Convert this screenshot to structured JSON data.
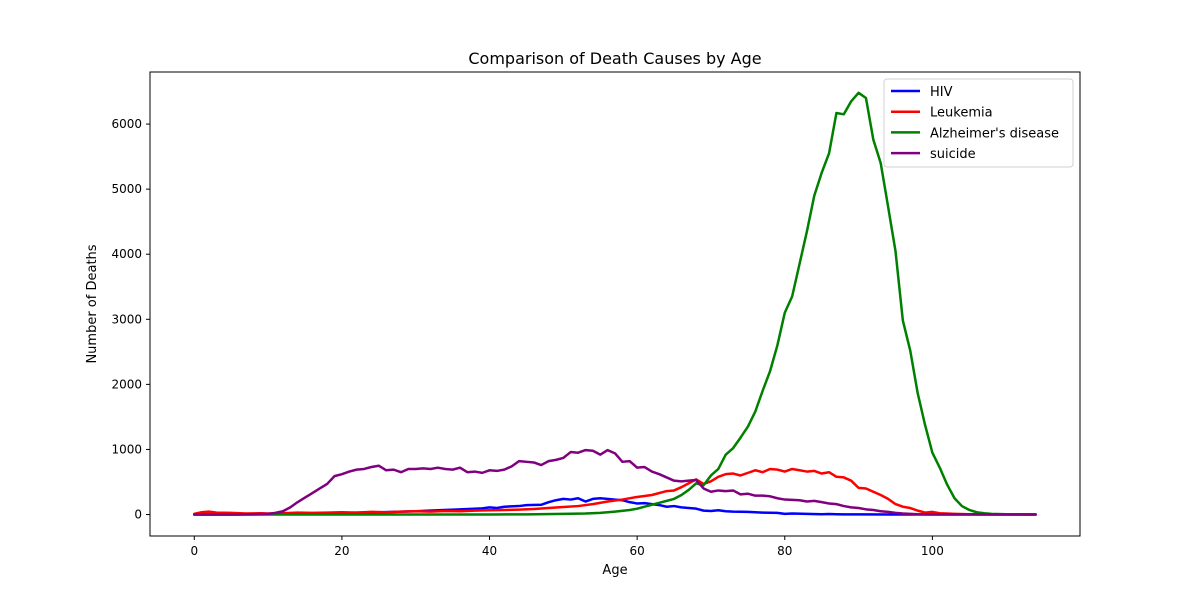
{
  "chart_data": {
    "type": "line",
    "title": "Comparison of Death Causes by Age",
    "xlabel": "Age",
    "ylabel": "Number of Deaths",
    "xlim": [
      -6,
      120
    ],
    "ylim": [
      -330,
      6800
    ],
    "xticks": [
      0,
      20,
      40,
      60,
      80,
      100
    ],
    "yticks": [
      0,
      1000,
      2000,
      3000,
      4000,
      5000,
      6000
    ],
    "grid": false,
    "legend_position": "top-right",
    "series": [
      {
        "name": "HIV",
        "color": "#0000ff",
        "points": [
          [
            0,
            0
          ],
          [
            5,
            0
          ],
          [
            10,
            5
          ],
          [
            15,
            15
          ],
          [
            20,
            25
          ],
          [
            25,
            35
          ],
          [
            30,
            50
          ],
          [
            33,
            65
          ],
          [
            36,
            80
          ],
          [
            39,
            95
          ],
          [
            40,
            110
          ],
          [
            41,
            100
          ],
          [
            42,
            120
          ],
          [
            44,
            130
          ],
          [
            45,
            145
          ],
          [
            47,
            150
          ],
          [
            48,
            190
          ],
          [
            49,
            220
          ],
          [
            50,
            240
          ],
          [
            51,
            230
          ],
          [
            52,
            250
          ],
          [
            53,
            200
          ],
          [
            54,
            240
          ],
          [
            55,
            250
          ],
          [
            57,
            230
          ],
          [
            58,
            220
          ],
          [
            59,
            190
          ],
          [
            60,
            170
          ],
          [
            61,
            175
          ],
          [
            62,
            160
          ],
          [
            63,
            145
          ],
          [
            64,
            120
          ],
          [
            65,
            130
          ],
          [
            66,
            110
          ],
          [
            67,
            100
          ],
          [
            68,
            90
          ],
          [
            69,
            60
          ],
          [
            70,
            55
          ],
          [
            71,
            65
          ],
          [
            72,
            50
          ],
          [
            73,
            45
          ],
          [
            75,
            40
          ],
          [
            77,
            30
          ],
          [
            79,
            25
          ],
          [
            80,
            10
          ],
          [
            81,
            15
          ],
          [
            83,
            10
          ],
          [
            85,
            5
          ],
          [
            86,
            8
          ],
          [
            87,
            5
          ],
          [
            88,
            3
          ],
          [
            90,
            2
          ],
          [
            95,
            0
          ],
          [
            100,
            0
          ],
          [
            114,
            0
          ]
        ]
      },
      {
        "name": "Leukemia",
        "color": "#ff0000",
        "points": [
          [
            0,
            10
          ],
          [
            1,
            35
          ],
          [
            2,
            45
          ],
          [
            3,
            30
          ],
          [
            5,
            25
          ],
          [
            7,
            15
          ],
          [
            9,
            20
          ],
          [
            10,
            15
          ],
          [
            12,
            20
          ],
          [
            14,
            30
          ],
          [
            16,
            25
          ],
          [
            18,
            30
          ],
          [
            20,
            35
          ],
          [
            22,
            30
          ],
          [
            24,
            40
          ],
          [
            26,
            35
          ],
          [
            28,
            45
          ],
          [
            30,
            50
          ],
          [
            32,
            45
          ],
          [
            34,
            55
          ],
          [
            36,
            50
          ],
          [
            38,
            60
          ],
          [
            40,
            65
          ],
          [
            42,
            70
          ],
          [
            44,
            75
          ],
          [
            46,
            85
          ],
          [
            48,
            100
          ],
          [
            50,
            115
          ],
          [
            52,
            130
          ],
          [
            54,
            160
          ],
          [
            56,
            200
          ],
          [
            58,
            230
          ],
          [
            60,
            270
          ],
          [
            62,
            300
          ],
          [
            64,
            360
          ],
          [
            65,
            370
          ],
          [
            66,
            420
          ],
          [
            67,
            480
          ],
          [
            68,
            540
          ],
          [
            69,
            470
          ],
          [
            70,
            510
          ],
          [
            71,
            580
          ],
          [
            72,
            620
          ],
          [
            73,
            630
          ],
          [
            74,
            600
          ],
          [
            75,
            640
          ],
          [
            76,
            680
          ],
          [
            77,
            650
          ],
          [
            78,
            700
          ],
          [
            79,
            690
          ],
          [
            80,
            660
          ],
          [
            81,
            700
          ],
          [
            82,
            680
          ],
          [
            83,
            660
          ],
          [
            84,
            670
          ],
          [
            85,
            630
          ],
          [
            86,
            650
          ],
          [
            87,
            580
          ],
          [
            88,
            570
          ],
          [
            89,
            520
          ],
          [
            90,
            410
          ],
          [
            91,
            400
          ],
          [
            92,
            350
          ],
          [
            93,
            300
          ],
          [
            94,
            240
          ],
          [
            95,
            160
          ],
          [
            96,
            120
          ],
          [
            97,
            100
          ],
          [
            98,
            60
          ],
          [
            99,
            30
          ],
          [
            100,
            40
          ],
          [
            101,
            20
          ],
          [
            103,
            10
          ],
          [
            105,
            5
          ],
          [
            114,
            0
          ]
        ]
      },
      {
        "name": "Alzheimer's disease",
        "color": "#008000",
        "points": [
          [
            0,
            0
          ],
          [
            20,
            0
          ],
          [
            40,
            0
          ],
          [
            45,
            3
          ],
          [
            50,
            10
          ],
          [
            53,
            15
          ],
          [
            55,
            25
          ],
          [
            57,
            45
          ],
          [
            59,
            70
          ],
          [
            60,
            90
          ],
          [
            61,
            120
          ],
          [
            62,
            150
          ],
          [
            63,
            180
          ],
          [
            64,
            210
          ],
          [
            65,
            240
          ],
          [
            66,
            300
          ],
          [
            67,
            380
          ],
          [
            68,
            480
          ],
          [
            69,
            450
          ],
          [
            70,
            600
          ],
          [
            71,
            700
          ],
          [
            72,
            920
          ],
          [
            73,
            1020
          ],
          [
            74,
            1180
          ],
          [
            75,
            1350
          ],
          [
            76,
            1580
          ],
          [
            77,
            1900
          ],
          [
            78,
            2200
          ],
          [
            79,
            2600
          ],
          [
            80,
            3100
          ],
          [
            81,
            3350
          ],
          [
            82,
            3850
          ],
          [
            83,
            4350
          ],
          [
            84,
            4900
          ],
          [
            85,
            5250
          ],
          [
            86,
            5550
          ],
          [
            87,
            6170
          ],
          [
            88,
            6150
          ],
          [
            89,
            6350
          ],
          [
            90,
            6480
          ],
          [
            91,
            6400
          ],
          [
            92,
            5760
          ],
          [
            93,
            5400
          ],
          [
            94,
            4730
          ],
          [
            95,
            4050
          ],
          [
            96,
            2980
          ],
          [
            97,
            2520
          ],
          [
            98,
            1870
          ],
          [
            99,
            1380
          ],
          [
            100,
            950
          ],
          [
            101,
            720
          ],
          [
            102,
            460
          ],
          [
            103,
            250
          ],
          [
            104,
            130
          ],
          [
            105,
            70
          ],
          [
            106,
            35
          ],
          [
            107,
            20
          ],
          [
            108,
            10
          ],
          [
            110,
            5
          ],
          [
            114,
            0
          ]
        ]
      },
      {
        "name": "suicide",
        "color": "#800080",
        "points": [
          [
            0,
            0
          ],
          [
            5,
            0
          ],
          [
            8,
            5
          ],
          [
            10,
            10
          ],
          [
            11,
            25
          ],
          [
            12,
            50
          ],
          [
            13,
            110
          ],
          [
            14,
            190
          ],
          [
            15,
            260
          ],
          [
            16,
            330
          ],
          [
            17,
            400
          ],
          [
            18,
            470
          ],
          [
            19,
            590
          ],
          [
            20,
            620
          ],
          [
            21,
            660
          ],
          [
            22,
            690
          ],
          [
            23,
            700
          ],
          [
            24,
            730
          ],
          [
            25,
            750
          ],
          [
            26,
            680
          ],
          [
            27,
            690
          ],
          [
            28,
            650
          ],
          [
            29,
            700
          ],
          [
            30,
            700
          ],
          [
            31,
            710
          ],
          [
            32,
            700
          ],
          [
            33,
            720
          ],
          [
            34,
            700
          ],
          [
            35,
            690
          ],
          [
            36,
            720
          ],
          [
            37,
            650
          ],
          [
            38,
            660
          ],
          [
            39,
            640
          ],
          [
            40,
            680
          ],
          [
            41,
            670
          ],
          [
            42,
            690
          ],
          [
            43,
            740
          ],
          [
            44,
            820
          ],
          [
            45,
            810
          ],
          [
            46,
            800
          ],
          [
            47,
            760
          ],
          [
            48,
            820
          ],
          [
            49,
            840
          ],
          [
            50,
            870
          ],
          [
            51,
            960
          ],
          [
            52,
            950
          ],
          [
            53,
            990
          ],
          [
            54,
            980
          ],
          [
            55,
            920
          ],
          [
            56,
            990
          ],
          [
            57,
            940
          ],
          [
            58,
            810
          ],
          [
            59,
            820
          ],
          [
            60,
            720
          ],
          [
            61,
            730
          ],
          [
            62,
            660
          ],
          [
            63,
            620
          ],
          [
            64,
            570
          ],
          [
            65,
            520
          ],
          [
            66,
            510
          ],
          [
            67,
            520
          ],
          [
            68,
            530
          ],
          [
            69,
            400
          ],
          [
            70,
            350
          ],
          [
            71,
            370
          ],
          [
            72,
            360
          ],
          [
            73,
            370
          ],
          [
            74,
            310
          ],
          [
            75,
            320
          ],
          [
            76,
            290
          ],
          [
            77,
            290
          ],
          [
            78,
            280
          ],
          [
            79,
            250
          ],
          [
            80,
            230
          ],
          [
            82,
            220
          ],
          [
            83,
            200
          ],
          [
            84,
            210
          ],
          [
            85,
            190
          ],
          [
            86,
            170
          ],
          [
            87,
            160
          ],
          [
            88,
            130
          ],
          [
            89,
            110
          ],
          [
            90,
            100
          ],
          [
            91,
            80
          ],
          [
            92,
            70
          ],
          [
            93,
            50
          ],
          [
            94,
            40
          ],
          [
            95,
            25
          ],
          [
            96,
            15
          ],
          [
            97,
            10
          ],
          [
            98,
            5
          ],
          [
            100,
            3
          ],
          [
            114,
            0
          ]
        ]
      }
    ]
  }
}
